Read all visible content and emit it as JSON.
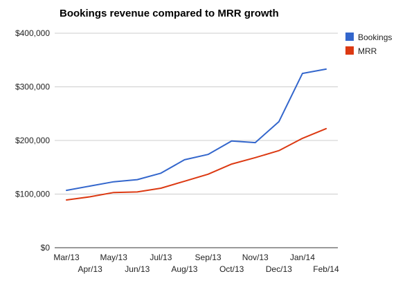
{
  "chart_data": {
    "type": "line",
    "title": "Bookings revenue compared to MRR growth",
    "xlabel": "",
    "ylabel": "",
    "categories": [
      "Mar/13",
      "Apr/13",
      "May/13",
      "Jun/13",
      "Jul/13",
      "Aug/13",
      "Sep/13",
      "Oct/13",
      "Nov/13",
      "Dec/13",
      "Jan/14",
      "Feb/14"
    ],
    "y_ticks": [
      0,
      100000,
      200000,
      300000,
      400000
    ],
    "y_tick_labels": [
      "$0",
      "$100,000",
      "$200,000",
      "$300,000",
      "$400,000"
    ],
    "ylim": [
      0,
      400000
    ],
    "grid": true,
    "legend_position": "right",
    "series": [
      {
        "name": "Bookings",
        "color": "#3366cc",
        "values": [
          107000,
          115000,
          123000,
          127000,
          139000,
          164000,
          174000,
          199000,
          196000,
          235000,
          325000,
          333000
        ]
      },
      {
        "name": "MRR",
        "color": "#dc3912",
        "values": [
          89000,
          95000,
          103000,
          104000,
          111000,
          124000,
          137000,
          156000,
          168000,
          181000,
          204000,
          222000
        ]
      }
    ]
  }
}
